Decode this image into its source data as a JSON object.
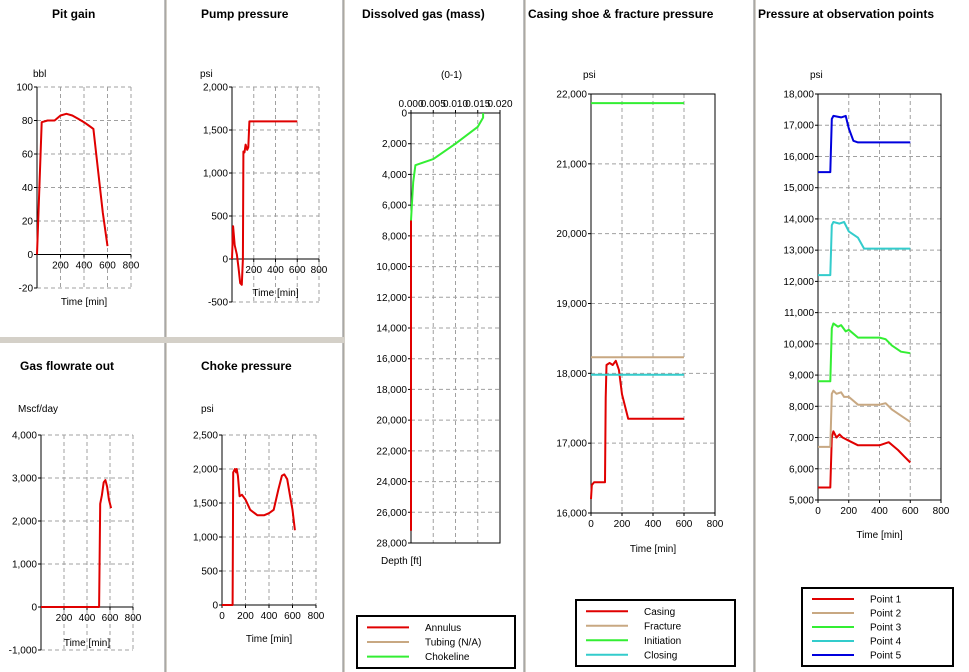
{
  "chart_data": [
    {
      "id": "pit_gain",
      "type": "line",
      "title": "Pit gain",
      "unit": "bbl",
      "xlabel": "Time [min]",
      "xlim": [
        0,
        800
      ],
      "ylim": [
        -20,
        100
      ],
      "xticks": [
        200,
        400,
        600,
        800
      ],
      "xtick_labels": [
        "200",
        "400",
        "600",
        "800"
      ],
      "yticks": [
        -20,
        0,
        20,
        40,
        60,
        80,
        100
      ],
      "ytick_labels": [
        "-20",
        "0",
        "20",
        "40",
        "60",
        "80",
        "100"
      ],
      "series": [
        {
          "color": "#e00000",
          "x": [
            0,
            40,
            90,
            150,
            200,
            250,
            300,
            350,
            400,
            440,
            480,
            520,
            560,
            600
          ],
          "y": [
            0,
            79,
            80,
            80,
            83,
            84,
            83,
            81,
            79,
            77,
            75,
            50,
            25,
            5
          ]
        }
      ]
    },
    {
      "id": "pump_pressure",
      "type": "line",
      "title": "Pump pressure",
      "unit": "psi",
      "xlabel": "Time [min]",
      "xlim": [
        0,
        800
      ],
      "ylim": [
        -500,
        2000
      ],
      "xticks": [
        200,
        400,
        600,
        800
      ],
      "xtick_labels": [
        "200",
        "400",
        "600",
        "800"
      ],
      "yticks": [
        -500,
        0,
        500,
        1000,
        1500,
        2000
      ],
      "ytick_labels": [
        "-500",
        "0",
        "500",
        "1,000",
        "1,500",
        "2,000"
      ],
      "series": [
        {
          "color": "#e00000",
          "x": [
            0,
            10,
            25,
            45,
            60,
            75,
            90,
            100,
            105,
            115,
            125,
            140,
            150,
            160,
            600
          ],
          "y": [
            0,
            380,
            160,
            50,
            -100,
            -280,
            -300,
            0,
            1250,
            1240,
            1330,
            1270,
            1300,
            1600,
            1600
          ]
        }
      ]
    },
    {
      "id": "gas_flowrate",
      "type": "line",
      "title": "Gas flowrate out",
      "unit": "Mscf/day",
      "xlabel": "Time [min]",
      "xlim": [
        0,
        800
      ],
      "ylim": [
        -1000,
        4000
      ],
      "xticks": [
        200,
        400,
        600,
        800
      ],
      "xtick_labels": [
        "200",
        "400",
        "600",
        "800"
      ],
      "yticks": [
        -1000,
        0,
        1000,
        2000,
        3000,
        4000
      ],
      "ytick_labels": [
        "-1,000",
        "0",
        "1,000",
        "2,000",
        "3,000",
        "4,000"
      ],
      "series": [
        {
          "color": "#e00000",
          "x": [
            0,
            480,
            505,
            515,
            530,
            545,
            560,
            575,
            590,
            610
          ],
          "y": [
            0,
            0,
            0,
            2400,
            2600,
            2900,
            2950,
            2800,
            2500,
            2300
          ]
        }
      ]
    },
    {
      "id": "choke_pressure",
      "type": "line",
      "title": "Choke pressure",
      "unit": "psi",
      "xlabel": "Time [min]",
      "xlim": [
        0,
        800
      ],
      "ylim": [
        0,
        2500
      ],
      "xticks": [
        0,
        200,
        400,
        600,
        800
      ],
      "xtick_labels": [
        "0",
        "200",
        "400",
        "600",
        "800"
      ],
      "yticks": [
        0,
        500,
        1000,
        1500,
        2000,
        2500
      ],
      "ytick_labels": [
        "0",
        "500",
        "1,000",
        "1,500",
        "2,000",
        "2,500"
      ],
      "series": [
        {
          "color": "#e00000",
          "x": [
            0,
            90,
            95,
            110,
            120,
            125,
            135,
            150,
            170,
            200,
            240,
            300,
            360,
            400,
            440,
            480,
            510,
            530,
            555,
            580,
            600,
            620
          ],
          "y": [
            0,
            0,
            1950,
            2000,
            1950,
            2000,
            1900,
            1600,
            1620,
            1550,
            1400,
            1320,
            1320,
            1350,
            1400,
            1700,
            1900,
            1920,
            1850,
            1600,
            1400,
            1100
          ]
        }
      ]
    },
    {
      "id": "dissolved_gas",
      "type": "line",
      "title": "Dissolved gas (mass)",
      "unit": "(0-1)",
      "xlabel": "Depth [ft]",
      "xlim": [
        0,
        0.02
      ],
      "ylim": [
        28000,
        0
      ],
      "xticks": [
        0,
        0.005,
        0.01,
        0.015,
        0.02
      ],
      "xtick_labels": [
        "0.000",
        "0.005",
        "0.010",
        "0.015",
        "0.020"
      ],
      "yticks": [
        0,
        2000,
        4000,
        6000,
        8000,
        10000,
        12000,
        14000,
        16000,
        18000,
        20000,
        22000,
        24000,
        26000,
        28000
      ],
      "ytick_labels": [
        "0",
        "2,000",
        "4,000",
        "6,000",
        "8,000",
        "10,000",
        "12,000",
        "14,000",
        "16,000",
        "18,000",
        "20,000",
        "22,000",
        "24,000",
        "26,000",
        "28,000"
      ],
      "series": [
        {
          "name": "Annulus",
          "color": "#e00000",
          "x": [
            0,
            0
          ],
          "y": [
            7000,
            27200
          ]
        },
        {
          "name": "Tubing (N/A)",
          "color": "#c8a882",
          "x": [],
          "y": []
        },
        {
          "name": "Chokeline",
          "color": "#33ee33",
          "x": [
            0.0162,
            0.0162,
            0.015,
            0.01,
            0.005,
            0.001,
            0.0005,
            0.0003,
            0
          ],
          "y": [
            0,
            300,
            900,
            2000,
            3000,
            3400,
            4500,
            5500,
            7000
          ]
        }
      ]
    },
    {
      "id": "casing_shoe",
      "type": "line",
      "title": "Casing shoe & fracture pressure",
      "unit": "psi",
      "xlabel": "Time [min]",
      "xlim": [
        0,
        800
      ],
      "ylim": [
        16000,
        22000
      ],
      "xticks": [
        0,
        200,
        400,
        600,
        800
      ],
      "xtick_labels": [
        "0",
        "200",
        "400",
        "600",
        "800"
      ],
      "yticks": [
        16000,
        17000,
        18000,
        19000,
        20000,
        21000,
        22000
      ],
      "ytick_labels": [
        "16,000",
        "17,000",
        "18,000",
        "19,000",
        "20,000",
        "21,000",
        "22,000"
      ],
      "series": [
        {
          "name": "Casing",
          "color": "#e00000",
          "x": [
            0,
            5,
            20,
            90,
            95,
            100,
            120,
            140,
            160,
            180,
            200,
            240,
            300,
            600
          ],
          "y": [
            16200,
            16400,
            16440,
            16440,
            17650,
            18120,
            18150,
            18120,
            18180,
            18050,
            17700,
            17350,
            17350,
            17350
          ]
        },
        {
          "name": "Fracture",
          "color": "#c8a882",
          "x": [
            0,
            600
          ],
          "y": [
            18230,
            18230
          ]
        },
        {
          "name": "Initiation",
          "color": "#33ee33",
          "x": [
            0,
            600
          ],
          "y": [
            21870,
            21870
          ]
        },
        {
          "name": "Closing",
          "color": "#33cccc",
          "x": [
            0,
            600
          ],
          "y": [
            17980,
            17980
          ]
        }
      ]
    },
    {
      "id": "observation_points",
      "type": "line",
      "title": "Pressure at observation points",
      "unit": "psi",
      "xlabel": "Time [min]",
      "xlim": [
        0,
        800
      ],
      "ylim": [
        5000,
        18000
      ],
      "xticks": [
        0,
        200,
        400,
        600,
        800
      ],
      "xtick_labels": [
        "0",
        "200",
        "400",
        "600",
        "800"
      ],
      "yticks": [
        5000,
        6000,
        7000,
        8000,
        9000,
        10000,
        11000,
        12000,
        13000,
        14000,
        15000,
        16000,
        17000,
        18000
      ],
      "ytick_labels": [
        "5,000",
        "6,000",
        "7,000",
        "8,000",
        "9,000",
        "10,000",
        "11,000",
        "12,000",
        "13,000",
        "14,000",
        "15,000",
        "16,000",
        "17,000",
        "18,000"
      ],
      "series": [
        {
          "name": "Point  1",
          "color": "#e00000",
          "x": [
            0,
            80,
            90,
            100,
            120,
            140,
            160,
            200,
            260,
            300,
            400,
            460,
            520,
            560,
            600
          ],
          "y": [
            5400,
            5400,
            7000,
            7200,
            7000,
            7100,
            7000,
            6900,
            6750,
            6750,
            6750,
            6850,
            6600,
            6400,
            6200
          ]
        },
        {
          "name": "Point  2",
          "color": "#c8a882",
          "x": [
            0,
            80,
            90,
            100,
            120,
            150,
            170,
            200,
            260,
            400,
            440,
            480,
            540,
            600
          ],
          "y": [
            6700,
            6700,
            8400,
            8500,
            8400,
            8450,
            8300,
            8300,
            8050,
            8050,
            8100,
            7900,
            7700,
            7500
          ]
        },
        {
          "name": "Point  3",
          "color": "#33ee33",
          "x": [
            0,
            80,
            90,
            100,
            130,
            150,
            180,
            200,
            260,
            400,
            440,
            480,
            540,
            600
          ],
          "y": [
            8800,
            8800,
            10500,
            10650,
            10550,
            10600,
            10400,
            10450,
            10200,
            10200,
            10150,
            9950,
            9750,
            9700
          ]
        },
        {
          "name": "Point  4",
          "color": "#33cccc",
          "x": [
            0,
            80,
            90,
            100,
            140,
            170,
            200,
            260,
            300,
            400,
            600
          ],
          "y": [
            12200,
            12200,
            13800,
            13900,
            13850,
            13900,
            13600,
            13400,
            13050,
            13050,
            13050
          ]
        },
        {
          "name": "Point  5",
          "color": "#0000dd",
          "x": [
            0,
            80,
            90,
            100,
            150,
            180,
            200,
            230,
            260,
            400,
            600
          ],
          "y": [
            15500,
            15500,
            17200,
            17300,
            17250,
            17300,
            16900,
            16500,
            16450,
            16450,
            16450
          ]
        }
      ]
    }
  ]
}
